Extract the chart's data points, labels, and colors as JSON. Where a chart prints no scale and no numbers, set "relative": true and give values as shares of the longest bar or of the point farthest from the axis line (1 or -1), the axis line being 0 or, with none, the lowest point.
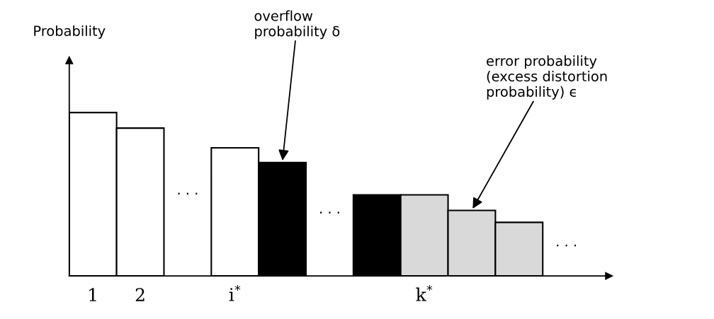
{
  "chart_data": {
    "type": "bar",
    "relative": true,
    "categories": [
      "1",
      "2",
      null,
      "i$^{*}$",
      null,
      null,
      null,
      "k$^{*}$",
      null,
      null,
      null
    ],
    "values": [
      1,
      0.905,
      null,
      0.784,
      0.694,
      null,
      0.496,
      0.496,
      0.401,
      0.328,
      null
    ],
    "colors": [
      "#ffffff",
      "#ffffff",
      null,
      "#ffffff",
      "#000000",
      null,
      "#000000",
      "#d9d9d9",
      "#d9d9d9",
      "#d9d9d9",
      null
    ],
    "annotations": [
      "· · ·",
      "· · ·",
      "· · ·",
      "Probability",
      "overflow\nprobability δ",
      "error probability\n(excess distortion\nprobability) ϵ"
    ],
    "grid": false
  }
}
